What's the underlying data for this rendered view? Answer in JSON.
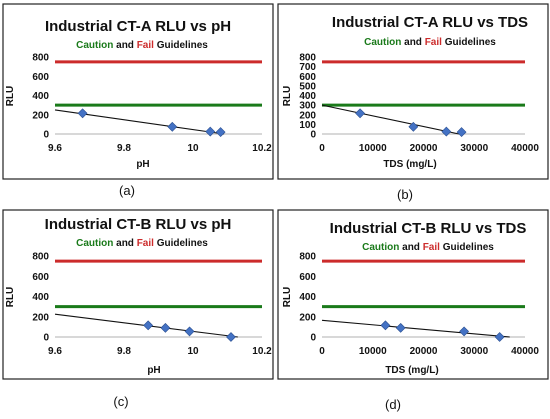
{
  "colors": {
    "caution_line": "#1a7a1a",
    "fail_line": "#cc2b2b",
    "caution_text": "#1a7a1a",
    "fail_text": "#cc2b2b",
    "marker": "#4472c4",
    "trend": "#111111"
  },
  "chart_data": [
    {
      "type": "scatter",
      "panel_label": "(a)",
      "title": "Industrial CT-A RLU vs pH",
      "subtitle": {
        "caution": "Caution",
        "and": " and ",
        "fail": "Fail",
        "rest": " Guidelines"
      },
      "xlabel": "pH",
      "ylabel": "RLU",
      "xlim": [
        9.6,
        10.2
      ],
      "ylim": [
        0,
        800
      ],
      "x_ticks": [
        "9.6",
        "9.8",
        "10",
        "10.2"
      ],
      "y_ticks": [
        "0",
        "200",
        "400",
        "600",
        "800"
      ],
      "points": {
        "x": [
          9.68,
          9.94,
          10.05,
          10.08
        ],
        "y": [
          215,
          75,
          25,
          20
        ]
      },
      "trendline": {
        "x": [
          9.6,
          10.09
        ],
        "y": [
          250,
          0
        ]
      },
      "guidelines": {
        "caution": 300,
        "fail": 750
      }
    },
    {
      "type": "scatter",
      "panel_label": "(b)",
      "title": "Industrial CT-A RLU vs TDS",
      "subtitle": {
        "caution": "Caution",
        "and": " and ",
        "fail": "Fail",
        "rest": " Guidelines"
      },
      "xlabel": "TDS (mg/L)",
      "ylabel": "RLU",
      "xlim": [
        0,
        40000
      ],
      "ylim": [
        0,
        800
      ],
      "x_ticks": [
        "0",
        "10000",
        "20000",
        "30000",
        "40000"
      ],
      "y_ticks": [
        "0",
        "100",
        "200",
        "300",
        "400",
        "500",
        "600",
        "700",
        "800"
      ],
      "points": {
        "x": [
          7500,
          18000,
          24500,
          27500
        ],
        "y": [
          215,
          75,
          25,
          20
        ]
      },
      "trendline": {
        "x": [
          0,
          27000
        ],
        "y": [
          300,
          0
        ]
      },
      "guidelines": {
        "caution": 300,
        "fail": 750
      }
    },
    {
      "type": "scatter",
      "panel_label": "(c)",
      "title": "Industrial CT-B RLU vs pH",
      "subtitle": {
        "caution": "Caution",
        "and": " and ",
        "fail": "Fail",
        "rest": " Guidelines"
      },
      "xlabel": "pH",
      "ylabel": "RLU",
      "xlim": [
        9.6,
        10.2
      ],
      "ylim": [
        0,
        800
      ],
      "x_ticks": [
        "9.6",
        "9.8",
        "10",
        "10.2"
      ],
      "y_ticks": [
        "0",
        "200",
        "400",
        "600",
        "800"
      ],
      "points": {
        "x": [
          9.87,
          9.92,
          9.99,
          10.11
        ],
        "y": [
          115,
          90,
          55,
          0
        ]
      },
      "trendline": {
        "x": [
          9.6,
          10.13
        ],
        "y": [
          225,
          0
        ]
      },
      "guidelines": {
        "caution": 300,
        "fail": 750
      }
    },
    {
      "type": "scatter",
      "panel_label": "(d)",
      "title": "Industrial CT-B RLU vs TDS",
      "subtitle": {
        "caution": "Caution",
        "and": " and ",
        "fail": "Fail",
        "rest": " Guidelines"
      },
      "xlabel": "TDS (mg/L)",
      "ylabel": "RLU",
      "xlim": [
        0,
        40000
      ],
      "ylim": [
        0,
        800
      ],
      "x_ticks": [
        "0",
        "10000",
        "20000",
        "30000",
        "40000"
      ],
      "y_ticks": [
        "0",
        "200",
        "400",
        "600",
        "800"
      ],
      "points": {
        "x": [
          12500,
          15500,
          28000,
          35000
        ],
        "y": [
          115,
          90,
          55,
          0
        ]
      },
      "trendline": {
        "x": [
          0,
          37000
        ],
        "y": [
          165,
          0
        ]
      },
      "guidelines": {
        "caution": 300,
        "fail": 750
      }
    }
  ]
}
